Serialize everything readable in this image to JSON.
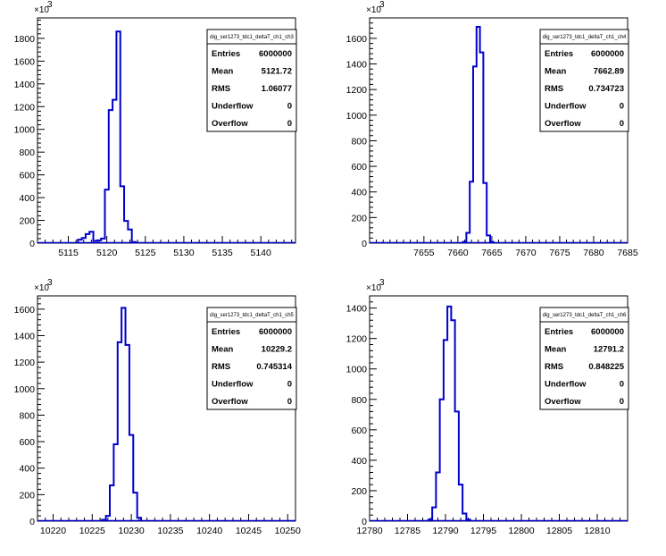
{
  "colors": {
    "histogram": "#0000cc",
    "frame": "#000000",
    "background": "#ffffff"
  },
  "chart_data": [
    {
      "type": "histogram",
      "title": "dig_ser1273_tdc1_deltaT_ch1_ch3",
      "y_multiplier_label": "×10",
      "y_multiplier_exp": "3",
      "xlim": [
        5111,
        5144.5
      ],
      "ylim": [
        0,
        1980
      ],
      "x_ticks": [
        5115,
        5120,
        5125,
        5130,
        5135,
        5140
      ],
      "y_ticks": [
        0,
        200,
        400,
        600,
        800,
        1000,
        1200,
        1400,
        1600,
        1800
      ],
      "y_tick_labels": [
        "0",
        "200",
        "400",
        "600",
        "800",
        "1000",
        "1200",
        "1400",
        "1600",
        "1800"
      ],
      "bin_width": 0.5,
      "bins": [
        {
          "x": 5116.5,
          "y": 30
        },
        {
          "x": 5117.0,
          "y": 45
        },
        {
          "x": 5117.5,
          "y": 80
        },
        {
          "x": 5118.0,
          "y": 100
        },
        {
          "x": 5118.5,
          "y": 20
        },
        {
          "x": 5119.0,
          "y": 25
        },
        {
          "x": 5119.5,
          "y": 40
        },
        {
          "x": 5120.0,
          "y": 470
        },
        {
          "x": 5120.5,
          "y": 1170
        },
        {
          "x": 5121.0,
          "y": 1260
        },
        {
          "x": 5121.5,
          "y": 1860
        },
        {
          "x": 5122.0,
          "y": 500
        },
        {
          "x": 5122.5,
          "y": 195
        },
        {
          "x": 5123.0,
          "y": 120
        },
        {
          "x": 5123.5,
          "y": 10
        }
      ],
      "stats": [
        {
          "label": "Entries",
          "value": "6000000"
        },
        {
          "label": "Mean",
          "value": "5121.72"
        },
        {
          "label": "RMS",
          "value": "1.06077"
        },
        {
          "label": "Underflow",
          "value": "0"
        },
        {
          "label": "Overflow",
          "value": "0"
        }
      ]
    },
    {
      "type": "histogram",
      "title": "dig_ser1273_tdc1_deltaT_ch1_ch4",
      "y_multiplier_label": "×10",
      "y_multiplier_exp": "3",
      "xlim": [
        7647,
        7685
      ],
      "ylim": [
        0,
        1760
      ],
      "x_ticks": [
        7655,
        7660,
        7665,
        7670,
        7675,
        7680,
        7685
      ],
      "y_ticks": [
        0,
        200,
        400,
        600,
        800,
        1000,
        1200,
        1400,
        1600
      ],
      "y_tick_labels": [
        "0",
        "200",
        "400",
        "600",
        "800",
        "1000",
        "1200",
        "1400",
        "1600"
      ],
      "bin_width": 0.5,
      "bins": [
        {
          "x": 7661.0,
          "y": 10
        },
        {
          "x": 7661.5,
          "y": 80
        },
        {
          "x": 7662.0,
          "y": 480
        },
        {
          "x": 7662.5,
          "y": 1380
        },
        {
          "x": 7663.0,
          "y": 1690
        },
        {
          "x": 7663.5,
          "y": 1490
        },
        {
          "x": 7664.0,
          "y": 470
        },
        {
          "x": 7664.5,
          "y": 60
        },
        {
          "x": 7665.0,
          "y": 10
        }
      ],
      "stats": [
        {
          "label": "Entries",
          "value": "6000000"
        },
        {
          "label": "Mean",
          "value": "7662.89"
        },
        {
          "label": "RMS",
          "value": "0.734723"
        },
        {
          "label": "Underflow",
          "value": "0"
        },
        {
          "label": "Overflow",
          "value": "0"
        }
      ]
    },
    {
      "type": "histogram",
      "title": "dig_ser1273_tdc1_deltaT_ch1_ch5",
      "y_multiplier_label": "×10",
      "y_multiplier_exp": "3",
      "xlim": [
        10218,
        10251
      ],
      "ylim": [
        0,
        1700
      ],
      "x_ticks": [
        10220,
        10225,
        10230,
        10235,
        10240,
        10245,
        10250
      ],
      "y_ticks": [
        0,
        200,
        400,
        600,
        800,
        1000,
        1200,
        1400,
        1600
      ],
      "y_tick_labels": [
        "0",
        "200",
        "400",
        "600",
        "800",
        "1000",
        "1200",
        "1400",
        "1600"
      ],
      "bin_width": 0.5,
      "bins": [
        {
          "x": 10226.5,
          "y": 10
        },
        {
          "x": 10227.0,
          "y": 40
        },
        {
          "x": 10227.5,
          "y": 270
        },
        {
          "x": 10228.0,
          "y": 580
        },
        {
          "x": 10228.5,
          "y": 1350
        },
        {
          "x": 10229.0,
          "y": 1610
        },
        {
          "x": 10229.5,
          "y": 1330
        },
        {
          "x": 10230.0,
          "y": 650
        },
        {
          "x": 10230.5,
          "y": 215
        },
        {
          "x": 10231.0,
          "y": 25
        }
      ],
      "stats": [
        {
          "label": "Entries",
          "value": "6000000"
        },
        {
          "label": "Mean",
          "value": "10229.2"
        },
        {
          "label": "RMS",
          "value": "0.745314"
        },
        {
          "label": "Underflow",
          "value": "0"
        },
        {
          "label": "Overflow",
          "value": "0"
        }
      ]
    },
    {
      "type": "histogram",
      "title": "dig_ser1273_tdc1_deltaT_ch1_ch6",
      "y_multiplier_label": "×10",
      "y_multiplier_exp": "3",
      "xlim": [
        12780,
        12814
      ],
      "ylim": [
        0,
        1480
      ],
      "x_ticks": [
        12780,
        12785,
        12790,
        12795,
        12800,
        12805,
        12810
      ],
      "y_ticks": [
        0,
        200,
        400,
        600,
        800,
        1000,
        1200,
        1400
      ],
      "y_tick_labels": [
        "0",
        "200",
        "400",
        "600",
        "800",
        "1000",
        "1200",
        "1400"
      ],
      "bin_width": 0.5,
      "bins": [
        {
          "x": 12788.0,
          "y": 10
        },
        {
          "x": 12788.5,
          "y": 90
        },
        {
          "x": 12789.0,
          "y": 320
        },
        {
          "x": 12789.5,
          "y": 800
        },
        {
          "x": 12790.0,
          "y": 1190
        },
        {
          "x": 12790.5,
          "y": 1410
        },
        {
          "x": 12791.0,
          "y": 1320
        },
        {
          "x": 12791.5,
          "y": 720
        },
        {
          "x": 12792.0,
          "y": 240
        },
        {
          "x": 12792.5,
          "y": 50
        },
        {
          "x": 12793.0,
          "y": 10
        }
      ],
      "stats": [
        {
          "label": "Entries",
          "value": "6000000"
        },
        {
          "label": "Mean",
          "value": "12791.2"
        },
        {
          "label": "RMS",
          "value": "0.848225"
        },
        {
          "label": "Underflow",
          "value": "0"
        },
        {
          "label": "Overflow",
          "value": "0"
        }
      ]
    }
  ]
}
